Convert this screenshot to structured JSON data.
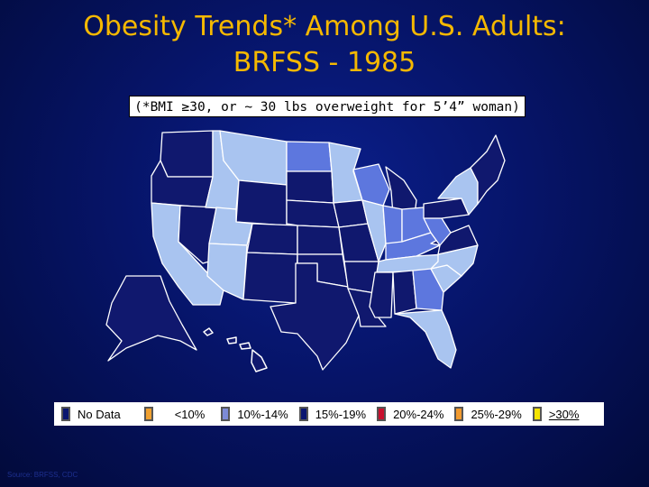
{
  "slide": {
    "title_line1": "Obesity Trends* Among U.S. Adults:",
    "title_line2": "BRFSS - 1985",
    "subtitle": "(*BMI ≥30, or ~ 30 lbs overweight for 5’4” woman)",
    "footer": "Source: BRFSS, CDC"
  },
  "legend": [
    {
      "label": "No Data",
      "color": "#0a1670"
    },
    {
      "label": "<10%",
      "color": "#f0a030"
    },
    {
      "label": "10%-14%",
      "color": "#7d8bd6"
    },
    {
      "label": "15%-19%",
      "color": "#0a1670"
    },
    {
      "label": "20%-24%",
      "color": "#c8102e"
    },
    {
      "label": "25%-29%",
      "color": "#f29a2e"
    },
    {
      "label": ">30%",
      "color": "#f5e400"
    }
  ],
  "colors": {
    "no_data": "#10186e",
    "lt10": "#a9c4f0",
    "r10_14": "#5d77de",
    "border": "#ffffff"
  },
  "map": {
    "states": [
      {
        "name": "Washington",
        "category": "no_data"
      },
      {
        "name": "Oregon",
        "category": "no_data"
      },
      {
        "name": "California",
        "category": "lt10"
      },
      {
        "name": "Nevada",
        "category": "no_data"
      },
      {
        "name": "Idaho",
        "category": "lt10"
      },
      {
        "name": "Montana",
        "category": "lt10"
      },
      {
        "name": "Wyoming",
        "category": "no_data"
      },
      {
        "name": "Utah",
        "category": "lt10"
      },
      {
        "name": "Arizona",
        "category": "lt10"
      },
      {
        "name": "Colorado",
        "category": "no_data"
      },
      {
        "name": "New Mexico",
        "category": "no_data"
      },
      {
        "name": "North Dakota",
        "category": "r10_14"
      },
      {
        "name": "South Dakota",
        "category": "no_data"
      },
      {
        "name": "Nebraska",
        "category": "no_data"
      },
      {
        "name": "Kansas",
        "category": "no_data"
      },
      {
        "name": "Oklahoma",
        "category": "no_data"
      },
      {
        "name": "Texas",
        "category": "no_data"
      },
      {
        "name": "Minnesota",
        "category": "lt10"
      },
      {
        "name": "Iowa",
        "category": "no_data"
      },
      {
        "name": "Missouri",
        "category": "no_data"
      },
      {
        "name": "Arkansas",
        "category": "no_data"
      },
      {
        "name": "Louisiana",
        "category": "no_data"
      },
      {
        "name": "Wisconsin",
        "category": "r10_14"
      },
      {
        "name": "Illinois",
        "category": "lt10"
      },
      {
        "name": "Michigan",
        "category": "no_data"
      },
      {
        "name": "Indiana",
        "category": "r10_14"
      },
      {
        "name": "Ohio",
        "category": "r10_14"
      },
      {
        "name": "Kentucky",
        "category": "r10_14"
      },
      {
        "name": "Tennessee",
        "category": "lt10"
      },
      {
        "name": "Mississippi",
        "category": "no_data"
      },
      {
        "name": "Alabama",
        "category": "no_data"
      },
      {
        "name": "Georgia",
        "category": "r10_14"
      },
      {
        "name": "Florida",
        "category": "lt10"
      },
      {
        "name": "South Carolina",
        "category": "lt10"
      },
      {
        "name": "North Carolina",
        "category": "lt10"
      },
      {
        "name": "Virginia",
        "category": "no_data"
      },
      {
        "name": "West Virginia",
        "category": "r10_14"
      },
      {
        "name": "Pennsylvania",
        "category": "no_data"
      },
      {
        "name": "New York",
        "category": "lt10"
      },
      {
        "name": "New England",
        "category": "no_data"
      },
      {
        "name": "Alaska",
        "category": "no_data"
      },
      {
        "name": "Hawaii",
        "category": "no_data"
      }
    ]
  }
}
